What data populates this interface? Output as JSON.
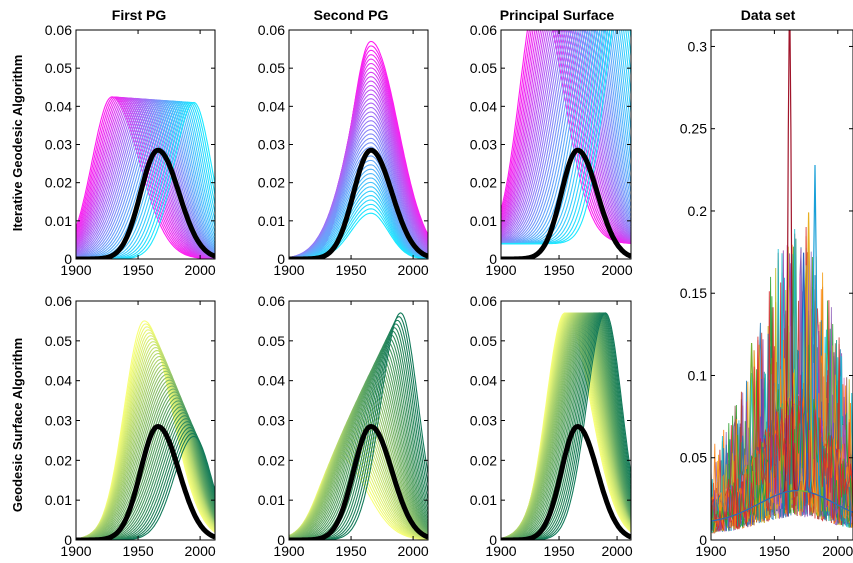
{
  "figure": {
    "row_labels": [
      "Iterative Geodesic Algorithm",
      "Geodesic Surface Algorithm"
    ],
    "colors": {
      "magenta": "#ff1cf0",
      "cyan": "#1ce8ff",
      "yellow": "#f8ff7a",
      "dark_green": "#137a5a",
      "mean_curve": "#000000"
    }
  },
  "chart_data": [
    {
      "type": "line",
      "title": "First PG",
      "row_label": "Iterative Geodesic Algorithm",
      "xlim": [
        1900,
        2012
      ],
      "ylim": [
        0,
        0.06
      ],
      "xticks": [
        1900,
        1950,
        2000
      ],
      "yticks": [
        0,
        0.01,
        0.02,
        0.03,
        0.04,
        0.05,
        0.06
      ],
      "color_range": [
        "#ff1cf0",
        "#1ce8ff"
      ],
      "n_curves": 40,
      "curve_from": {
        "peak_x": 1929,
        "peak_y": 0.0425
      },
      "curve_to": {
        "peak_x": 1995,
        "peak_y": 0.041
      },
      "mean_curve": {
        "peak_x": 1966,
        "peak_y": 0.0285
      }
    },
    {
      "type": "line",
      "title": "Second PG",
      "row_label": "Iterative Geodesic Algorithm",
      "xlim": [
        1900,
        2012
      ],
      "ylim": [
        0,
        0.06
      ],
      "xticks": [
        1900,
        1950,
        2000
      ],
      "yticks": [
        0,
        0.01,
        0.02,
        0.03,
        0.04,
        0.05,
        0.06
      ],
      "color_range": [
        "#ff1cf0",
        "#1ce8ff"
      ],
      "n_curves": 40,
      "curve_from": {
        "peak_x": 1966,
        "peak_y": 0.057
      },
      "curve_to": {
        "peak_x": 1966,
        "peak_y": 0.012
      },
      "mean_curve": {
        "peak_x": 1966,
        "peak_y": 0.0285
      }
    },
    {
      "type": "line",
      "title": "Principal Surface",
      "row_label": "Iterative Geodesic Algorithm",
      "xlim": [
        1900,
        2012
      ],
      "ylim": [
        0,
        0.06
      ],
      "xticks": [
        1900,
        1950,
        2000
      ],
      "yticks": [
        0,
        0.01,
        0.02,
        0.03,
        0.04,
        0.05,
        0.06
      ],
      "color_range": [
        "#ff1cf0",
        "#1ce8ff"
      ],
      "n_curves": 40,
      "curve_from": {
        "peak_x": 1932,
        "peak_y": 0.066
      },
      "curve_to": {
        "peak_x": 2005,
        "peak_y": 0.066
      },
      "mean_curve": {
        "peak_x": 1966,
        "peak_y": 0.0285
      }
    },
    {
      "type": "line",
      "title": "Data set",
      "row_label": "",
      "xlim": [
        1900,
        2012
      ],
      "ylim": [
        0,
        0.31
      ],
      "xticks": [
        1900,
        1950,
        2000
      ],
      "yticks": [
        0,
        0.05,
        0.1,
        0.15,
        0.2,
        0.25,
        0.3
      ],
      "n_curves": 60,
      "peaks": [
        {
          "x": 1962,
          "y": 0.31,
          "color": "#a0142a"
        },
        {
          "x": 1982,
          "y": 0.2,
          "color": "#1aa0d8"
        },
        {
          "x": 1977,
          "y": 0.17,
          "color": "#e8b020"
        },
        {
          "x": 1932,
          "y": 0.1,
          "color": "#78b030"
        },
        {
          "x": 1973,
          "y": 0.145,
          "color": "#2a5fc0"
        }
      ]
    },
    {
      "type": "line",
      "title": "",
      "row_label": "Geodesic Surface Algorithm",
      "xlim": [
        1900,
        2012
      ],
      "ylim": [
        0,
        0.06
      ],
      "xticks": [
        1900,
        1950,
        2000
      ],
      "yticks": [
        0,
        0.01,
        0.02,
        0.03,
        0.04,
        0.05,
        0.06
      ],
      "color_range": [
        "#f8ff7a",
        "#137a5a"
      ],
      "n_curves": 40,
      "curve_from": {
        "peak_x": 1955,
        "peak_y": 0.055
      },
      "curve_to": {
        "peak_x": 1995,
        "peak_y": 0.026
      },
      "mean_curve": {
        "peak_x": 1966,
        "peak_y": 0.0285
      }
    },
    {
      "type": "line",
      "title": "",
      "row_label": "Geodesic Surface Algorithm",
      "xlim": [
        1900,
        2012
      ],
      "ylim": [
        0,
        0.06
      ],
      "xticks": [
        1900,
        1950,
        2000
      ],
      "yticks": [
        0,
        0.01,
        0.02,
        0.03,
        0.04,
        0.05,
        0.06
      ],
      "color_range": [
        "#f8ff7a",
        "#137a5a"
      ],
      "n_curves": 40,
      "curve_from": {
        "peak_x": 1940,
        "peak_y": 0.021
      },
      "curve_to": {
        "peak_x": 1990,
        "peak_y": 0.057
      },
      "mean_curve": {
        "peak_x": 1966,
        "peak_y": 0.0285
      }
    },
    {
      "type": "line",
      "title": "",
      "row_label": "Geodesic Surface Algorithm",
      "xlim": [
        1900,
        2012
      ],
      "ylim": [
        0,
        0.06
      ],
      "xticks": [
        1900,
        1950,
        2000
      ],
      "yticks": [
        0,
        0.01,
        0.02,
        0.03,
        0.04,
        0.05,
        0.06
      ],
      "color_range": [
        "#f8ff7a",
        "#137a5a"
      ],
      "n_curves": 40,
      "curve_from": {
        "peak_x": 1955,
        "peak_y": 0.057
      },
      "curve_to": {
        "peak_x": 1990,
        "peak_y": 0.057
      },
      "mean_curve": {
        "peak_x": 1966,
        "peak_y": 0.0285
      }
    }
  ]
}
